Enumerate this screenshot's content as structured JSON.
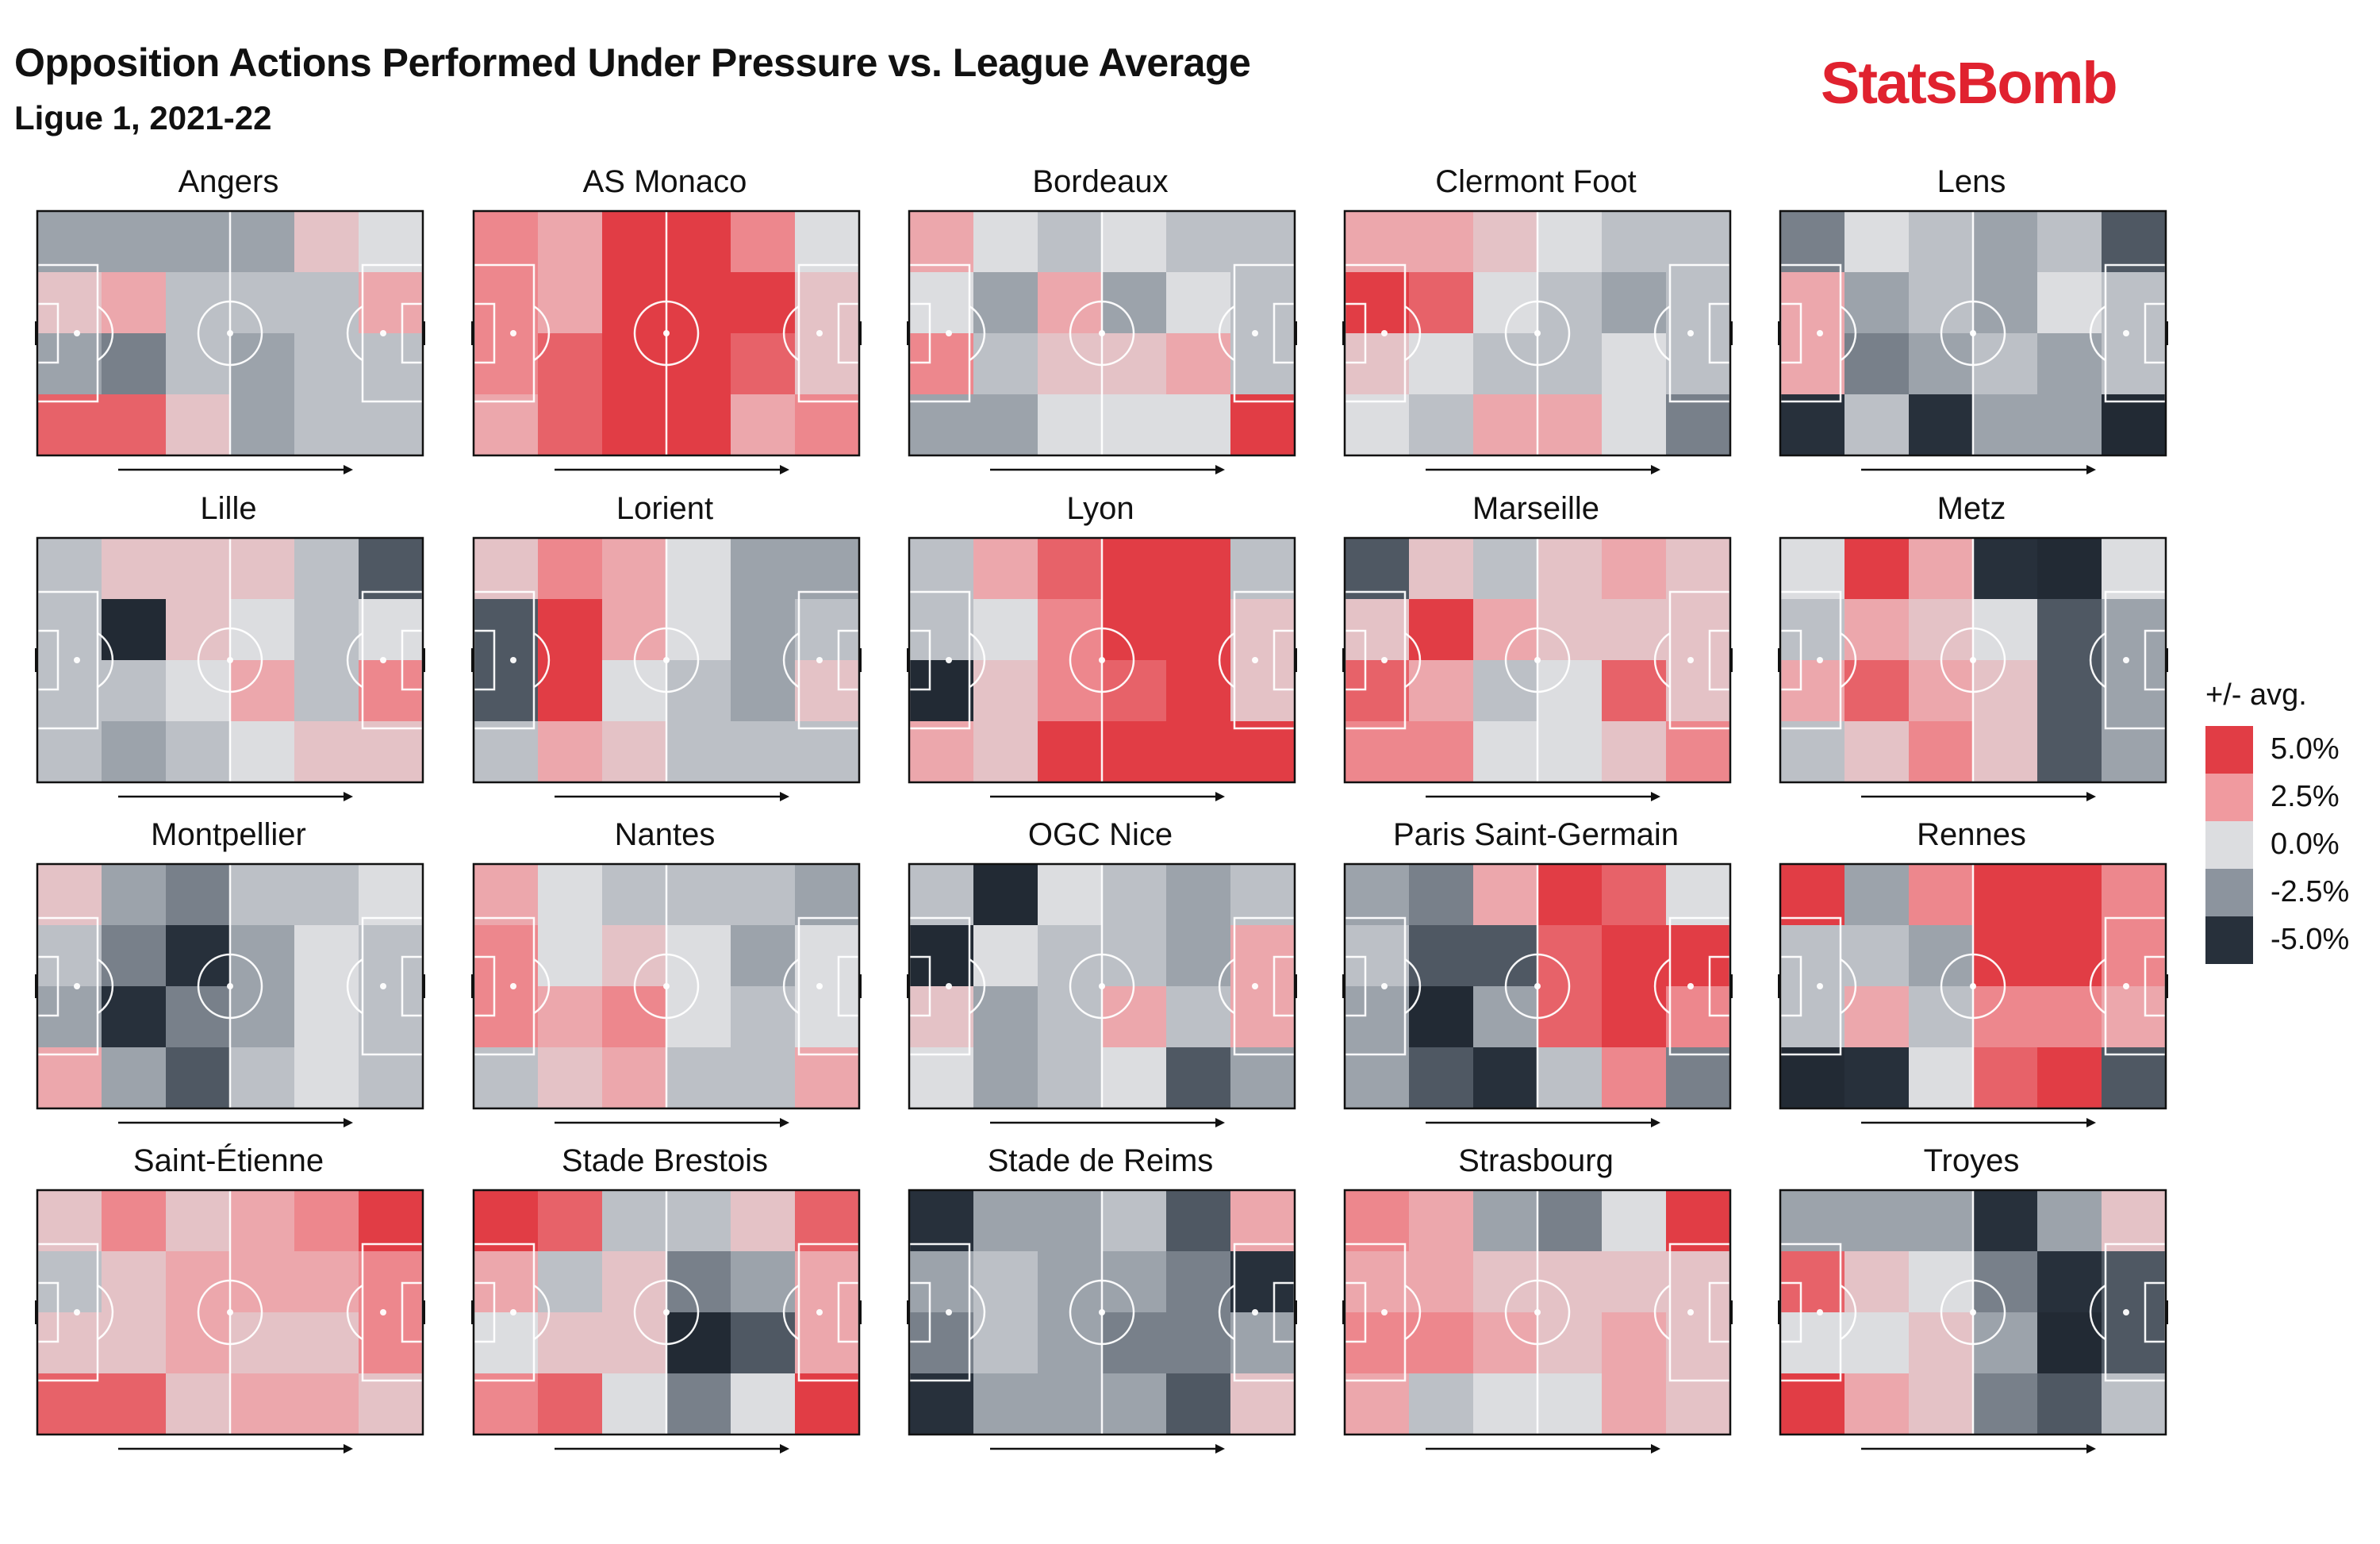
{
  "title": "Opposition Actions Performed Under Pressure vs. League Average",
  "subtitle": "Ligue 1, 2021-22",
  "brand": "StatsBomb",
  "colors": {
    "high": "#e13d45",
    "mid_high": "#f09a9f",
    "neutral": "#dcdde0",
    "mid_low": "#8c949e",
    "low": "#27303b"
  },
  "chart_data": {
    "type": "heatmap",
    "title": "Opposition Actions Performed Under Pressure vs. League Average",
    "subtitle": "Ligue 1, 2021-22",
    "value_unit": "% vs league average",
    "color_range": [
      -5.0,
      5.0
    ],
    "grid": {
      "columns": 6,
      "rows": 4
    },
    "attack_direction": "left-to-right",
    "legend": {
      "title": "+/- avg.",
      "placement": "right",
      "entries": [
        {
          "label": "5.0%",
          "value": 5.0,
          "color": "#e13d45"
        },
        {
          "label": "2.5%",
          "value": 2.5,
          "color": "#f09a9f"
        },
        {
          "label": "0.0%",
          "value": 0.0,
          "color": "#dcdde0"
        },
        {
          "label": "-2.5%",
          "value": -2.5,
          "color": "#8c949e"
        },
        {
          "label": "-5.0%",
          "value": -5.0,
          "color": "#27303b"
        }
      ]
    },
    "teams": [
      {
        "name": "Angers",
        "values": [
          [
            -2,
            -2,
            -2,
            -2,
            1,
            0
          ],
          [
            1,
            2,
            -1,
            -1,
            -1,
            2
          ],
          [
            -2,
            -3,
            -1,
            -2,
            -1,
            -1
          ],
          [
            4,
            4,
            1,
            -2,
            -1,
            -1
          ]
        ]
      },
      {
        "name": "AS Monaco",
        "values": [
          [
            3,
            2,
            5,
            5,
            3,
            0
          ],
          [
            3,
            2,
            5,
            5,
            5,
            1
          ],
          [
            3,
            4,
            5,
            5,
            4,
            1
          ],
          [
            2,
            4,
            5,
            5,
            2,
            3
          ]
        ]
      },
      {
        "name": "Bordeaux",
        "values": [
          [
            2,
            0,
            -1,
            0,
            -1,
            -1
          ],
          [
            0,
            -2,
            2,
            -2,
            0,
            -1
          ],
          [
            3,
            -1,
            1,
            1,
            2,
            -1
          ],
          [
            -2,
            -2,
            0,
            0,
            0,
            5
          ]
        ]
      },
      {
        "name": "Clermont Foot",
        "values": [
          [
            2,
            2,
            1,
            0,
            -1,
            -1
          ],
          [
            5,
            4,
            0,
            -1,
            -2,
            -1
          ],
          [
            1,
            0,
            -1,
            -1,
            0,
            -1
          ],
          [
            0,
            -1,
            2,
            2,
            0,
            -3
          ]
        ]
      },
      {
        "name": "Lens",
        "values": [
          [
            -3,
            0,
            -1,
            -2,
            -1,
            -4
          ],
          [
            2,
            -2,
            -1,
            -2,
            0,
            -1
          ],
          [
            2,
            -3,
            -2,
            -1,
            -2,
            -1
          ],
          [
            -5,
            -1,
            -5,
            -2,
            -2,
            -6
          ]
        ]
      },
      {
        "name": "Lille",
        "values": [
          [
            -1,
            1,
            1,
            1,
            -1,
            -4
          ],
          [
            -1,
            -6,
            1,
            0,
            -1,
            0
          ],
          [
            -1,
            -1,
            0,
            2,
            -1,
            3
          ],
          [
            -1,
            -2,
            -1,
            0,
            1,
            1
          ]
        ]
      },
      {
        "name": "Lorient",
        "values": [
          [
            1,
            3,
            2,
            0,
            -2,
            -2
          ],
          [
            -4,
            5,
            2,
            0,
            -2,
            -1
          ],
          [
            -4,
            5,
            0,
            -1,
            -2,
            1
          ],
          [
            -1,
            2,
            1,
            -1,
            -1,
            -1
          ]
        ]
      },
      {
        "name": "Lyon",
        "values": [
          [
            -1,
            2,
            4,
            5,
            5,
            -1
          ],
          [
            -1,
            0,
            3,
            5,
            5,
            1
          ],
          [
            -6,
            1,
            3,
            4,
            5,
            1
          ],
          [
            2,
            1,
            5,
            5,
            5,
            5
          ]
        ]
      },
      {
        "name": "Marseille",
        "values": [
          [
            -4,
            1,
            -1,
            1,
            2,
            1
          ],
          [
            1,
            5,
            2,
            1,
            1,
            1
          ],
          [
            4,
            2,
            -1,
            0,
            4,
            1
          ],
          [
            3,
            3,
            0,
            0,
            1,
            3
          ]
        ]
      },
      {
        "name": "Metz",
        "values": [
          [
            0,
            5,
            2,
            -5,
            -6,
            0
          ],
          [
            -1,
            2,
            1,
            0,
            -4,
            -2
          ],
          [
            2,
            4,
            2,
            1,
            -4,
            -2
          ],
          [
            -1,
            1,
            3,
            1,
            -4,
            -2
          ]
        ]
      },
      {
        "name": "Montpellier",
        "values": [
          [
            1,
            -2,
            -3,
            -1,
            -1,
            0
          ],
          [
            -1,
            -3,
            -5,
            -2,
            0,
            -1
          ],
          [
            -2,
            -5,
            -3,
            -2,
            0,
            -1
          ],
          [
            2,
            -2,
            -4,
            -1,
            0,
            -1
          ]
        ]
      },
      {
        "name": "Nantes",
        "values": [
          [
            2,
            0,
            -1,
            -1,
            -1,
            -2
          ],
          [
            3,
            0,
            1,
            0,
            -2,
            0
          ],
          [
            3,
            2,
            3,
            0,
            -1,
            0
          ],
          [
            -1,
            1,
            2,
            -1,
            -1,
            2
          ]
        ]
      },
      {
        "name": "OGC Nice",
        "values": [
          [
            -1,
            -6,
            0,
            -1,
            -2,
            -1
          ],
          [
            -6,
            0,
            -1,
            -1,
            -2,
            2
          ],
          [
            1,
            -2,
            -1,
            2,
            -1,
            2
          ],
          [
            0,
            -2,
            -1,
            0,
            -4,
            -2
          ]
        ]
      },
      {
        "name": "Paris Saint-Germain",
        "values": [
          [
            -2,
            -3,
            2,
            5,
            4,
            0
          ],
          [
            -1,
            -4,
            -4,
            4,
            5,
            5
          ],
          [
            -2,
            -6,
            -2,
            4,
            5,
            3
          ],
          [
            -2,
            -4,
            -5,
            -1,
            3,
            -3
          ]
        ]
      },
      {
        "name": "Rennes",
        "values": [
          [
            5,
            -2,
            3,
            5,
            5,
            3
          ],
          [
            -1,
            -1,
            -2,
            5,
            5,
            3
          ],
          [
            -1,
            2,
            -1,
            3,
            3,
            2
          ],
          [
            -6,
            -5,
            0,
            4,
            5,
            -4
          ]
        ]
      },
      {
        "name": "Saint-Étienne",
        "values": [
          [
            1,
            3,
            1,
            2,
            3,
            5
          ],
          [
            -1,
            1,
            2,
            2,
            2,
            3
          ],
          [
            1,
            1,
            2,
            1,
            1,
            3
          ],
          [
            4,
            4,
            1,
            2,
            2,
            1
          ]
        ]
      },
      {
        "name": "Stade Brestois",
        "values": [
          [
            5,
            4,
            -1,
            -1,
            1,
            4
          ],
          [
            2,
            -1,
            1,
            -3,
            -2,
            2
          ],
          [
            0,
            1,
            1,
            -6,
            -4,
            2
          ],
          [
            3,
            4,
            0,
            -3,
            0,
            5
          ]
        ]
      },
      {
        "name": "Stade de Reims",
        "values": [
          [
            -5,
            -2,
            -2,
            -1,
            -4,
            2
          ],
          [
            -2,
            -1,
            -2,
            -2,
            -3,
            -5
          ],
          [
            -3,
            -1,
            -2,
            -3,
            -3,
            -2
          ],
          [
            -5,
            -2,
            -2,
            -2,
            -4,
            1
          ]
        ]
      },
      {
        "name": "Strasbourg",
        "values": [
          [
            3,
            2,
            -2,
            -3,
            0,
            5
          ],
          [
            2,
            2,
            1,
            1,
            1,
            1
          ],
          [
            3,
            3,
            2,
            1,
            2,
            1
          ],
          [
            2,
            -1,
            0,
            0,
            2,
            1
          ]
        ]
      },
      {
        "name": "Troyes",
        "values": [
          [
            -2,
            -2,
            -2,
            -5,
            -2,
            1
          ],
          [
            4,
            1,
            0,
            -3,
            -5,
            -4
          ],
          [
            0,
            0,
            1,
            -2,
            -6,
            -4
          ],
          [
            5,
            2,
            1,
            -3,
            -4,
            -1
          ]
        ]
      }
    ]
  }
}
